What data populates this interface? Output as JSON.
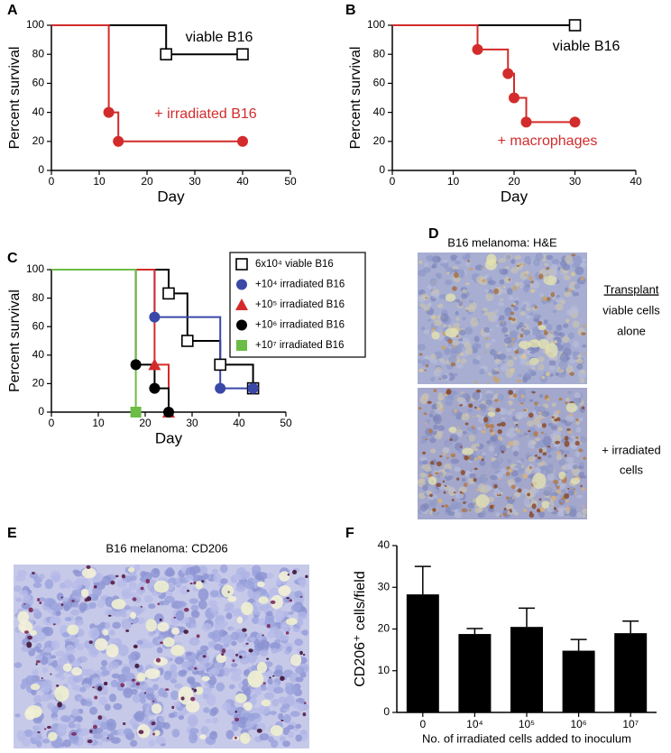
{
  "chart_data": [
    {
      "type": "line",
      "panel": "A",
      "xlabel": "Day",
      "ylabel": "Percent survival",
      "xlim": [
        0,
        50
      ],
      "xticks": [
        0,
        10,
        20,
        30,
        40,
        50
      ],
      "ylim": [
        0,
        100
      ],
      "yticks": [
        0,
        20,
        40,
        60,
        80,
        100
      ],
      "series": [
        {
          "name": "viable B16",
          "color": "#000000",
          "marker": "open-square",
          "x": [
            0,
            24,
            40
          ],
          "values": [
            100,
            80,
            80
          ]
        },
        {
          "name": "+ irradiated B16",
          "color": "#d32b2b",
          "marker": "circle",
          "x": [
            0,
            12,
            14,
            40
          ],
          "values": [
            100,
            40,
            20,
            20
          ]
        }
      ]
    },
    {
      "type": "line",
      "panel": "B",
      "xlabel": "Day",
      "ylabel": "Percent survival",
      "xlim": [
        0,
        40
      ],
      "xticks": [
        0,
        10,
        20,
        30,
        40
      ],
      "ylim": [
        0,
        100
      ],
      "yticks": [
        0,
        20,
        40,
        60,
        80,
        100
      ],
      "series": [
        {
          "name": "viable B16",
          "color": "#000000",
          "marker": "open-square",
          "x": [
            0,
            30
          ],
          "values": [
            100,
            100
          ]
        },
        {
          "name": "+ macrophages",
          "color": "#d32b2b",
          "marker": "circle",
          "x": [
            0,
            14,
            19,
            20,
            22,
            30
          ],
          "values": [
            100,
            83.3,
            66.7,
            50,
            33.3,
            33.3
          ]
        }
      ]
    },
    {
      "type": "line",
      "panel": "C",
      "xlabel": "Day",
      "ylabel": "Percent survival",
      "legend": "upper right",
      "xlim": [
        0,
        50
      ],
      "xticks": [
        0,
        10,
        20,
        30,
        40,
        50
      ],
      "ylim": [
        0,
        100
      ],
      "yticks": [
        0,
        20,
        40,
        60,
        80,
        100
      ],
      "series": [
        {
          "name": "6x10⁴ viable B16",
          "color": "#000000",
          "marker": "open-square",
          "x": [
            0,
            25,
            29,
            36,
            43
          ],
          "values": [
            100,
            83.3,
            50,
            33.3,
            16.7
          ]
        },
        {
          "name": "+10⁴ irradiated B16",
          "color": "#3a49a8",
          "marker": "circle",
          "x": [
            0,
            22,
            36,
            43
          ],
          "values": [
            100,
            66.7,
            16.7,
            16.7
          ]
        },
        {
          "name": "+10⁵ irradiated B16",
          "color": "#d32b2b",
          "marker": "triangle",
          "x": [
            0,
            22,
            25
          ],
          "values": [
            100,
            33.3,
            0
          ]
        },
        {
          "name": "+10⁶ irradiated B16",
          "color": "#000000",
          "marker": "circle",
          "x": [
            0,
            18,
            22,
            25
          ],
          "values": [
            100,
            33.3,
            16.7,
            0
          ]
        },
        {
          "name": "+10⁷ irradiated B16",
          "color": "#6bbd45",
          "marker": "square",
          "x": [
            0,
            18
          ],
          "values": [
            100,
            0
          ]
        }
      ]
    },
    {
      "type": "bar",
      "panel": "F",
      "xlabel": "No. of irradiated cells added to inoculum",
      "ylabel": "CD206⁺ cells/field",
      "categories": [
        "0",
        "10⁴",
        "10⁵",
        "10⁶",
        "10⁷"
      ],
      "values": [
        28.3,
        18.8,
        20.5,
        14.8,
        19
      ],
      "errors": [
        6.7,
        1.3,
        4.5,
        2.7,
        2.9
      ],
      "color": "#000000",
      "ylim": [
        0,
        40
      ],
      "yticks": [
        0,
        10,
        20,
        30,
        40
      ]
    }
  ],
  "images": [
    {
      "panel": "D",
      "title": "B16 melanoma: H&E",
      "labels": [
        "Transplant",
        "viable cells",
        "alone",
        "+ irradiated",
        "cells"
      ]
    },
    {
      "panel": "E",
      "title": "B16 melanoma: CD206"
    }
  ]
}
